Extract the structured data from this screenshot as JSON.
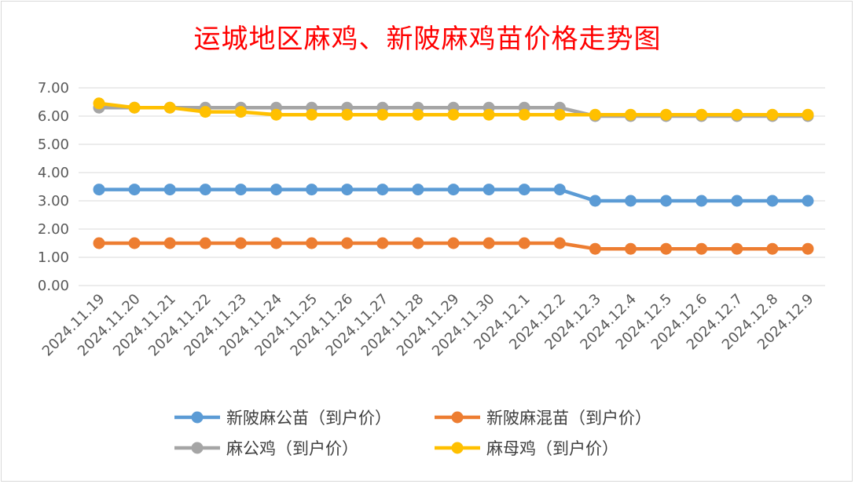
{
  "chart_data": {
    "type": "line",
    "title": "运城地区麻鸡、新陂麻鸡苗价格走势图",
    "categories": [
      "2024.11.19",
      "2024.11.20",
      "2024.11.21",
      "2024.11.22",
      "2024.11.23",
      "2024.11.24",
      "2024.11.25",
      "2024.11.26",
      "2024.11.27",
      "2024.11.28",
      "2024.11.29",
      "2024.11.30",
      "2024.12.1",
      "2024.12.2",
      "2024.12.3",
      "2024.12.4",
      "2024.12.5",
      "2024.12.6",
      "2024.12.7",
      "2024.12.8",
      "2024.12.9"
    ],
    "ylim": [
      0,
      7
    ],
    "yticks": [
      "0.00",
      "1.00",
      "2.00",
      "3.00",
      "4.00",
      "5.00",
      "6.00",
      "7.00"
    ],
    "grid": true,
    "legend_position": "bottom",
    "series": [
      {
        "name": "新陂麻公苗（到户价）",
        "color": "#5b9bd5",
        "values": [
          3.4,
          3.4,
          3.4,
          3.4,
          3.4,
          3.4,
          3.4,
          3.4,
          3.4,
          3.4,
          3.4,
          3.4,
          3.4,
          3.4,
          3.0,
          3.0,
          3.0,
          3.0,
          3.0,
          3.0,
          3.0
        ]
      },
      {
        "name": "新陂麻混苗（到户价）",
        "color": "#ed7d31",
        "values": [
          1.5,
          1.5,
          1.5,
          1.5,
          1.5,
          1.5,
          1.5,
          1.5,
          1.5,
          1.5,
          1.5,
          1.5,
          1.5,
          1.5,
          1.3,
          1.3,
          1.3,
          1.3,
          1.3,
          1.3,
          1.3
        ]
      },
      {
        "name": "麻公鸡（到户价）",
        "color": "#a5a5a5",
        "values": [
          6.3,
          6.3,
          6.3,
          6.3,
          6.3,
          6.3,
          6.3,
          6.3,
          6.3,
          6.3,
          6.3,
          6.3,
          6.3,
          6.3,
          6.0,
          6.0,
          6.0,
          6.0,
          6.0,
          6.0,
          6.0
        ]
      },
      {
        "name": "麻母鸡（到户价）",
        "color": "#ffc000",
        "values": [
          6.45,
          6.3,
          6.3,
          6.15,
          6.15,
          6.05,
          6.05,
          6.05,
          6.05,
          6.05,
          6.05,
          6.05,
          6.05,
          6.05,
          6.05,
          6.05,
          6.05,
          6.05,
          6.05,
          6.05,
          6.05
        ]
      }
    ]
  }
}
